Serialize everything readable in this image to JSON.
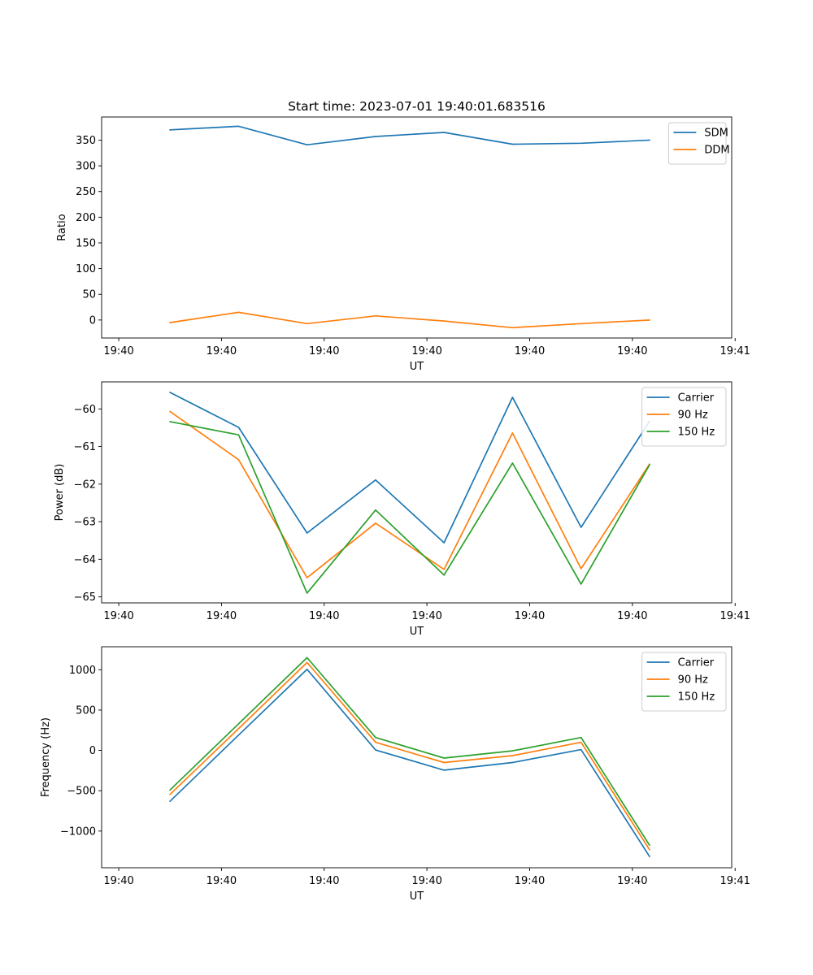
{
  "figure": {
    "title": "Start time: 2023-07-01 19:40:01.683516"
  },
  "chart_data": [
    {
      "type": "line",
      "title": "Start time: 2023-07-01 19:40:01.683516",
      "xlabel": "UT",
      "ylabel": "Ratio",
      "x_tick_labels": [
        "19:40",
        "19:40",
        "19:40",
        "19:40",
        "19:40",
        "19:40",
        "19:41"
      ],
      "y_ticks": [
        0,
        50,
        100,
        150,
        200,
        250,
        300,
        350
      ],
      "ylim": [
        -35,
        395
      ],
      "xlim": [
        -1,
        8.2
      ],
      "legend_position": "upper right",
      "series": [
        {
          "name": "SDM",
          "color": "#1f77b4",
          "x": [
            0,
            1,
            2,
            3,
            4,
            5,
            6,
            7
          ],
          "y": [
            370,
            377,
            341,
            357,
            365,
            342,
            344,
            350
          ]
        },
        {
          "name": "DDM",
          "color": "#ff7f0e",
          "x": [
            0,
            1,
            2,
            3,
            4,
            5,
            6,
            7
          ],
          "y": [
            -5,
            15,
            -7,
            8,
            -2,
            -15,
            -7,
            0
          ]
        }
      ]
    },
    {
      "type": "line",
      "title": "",
      "xlabel": "UT",
      "ylabel": "Power (dB)",
      "x_tick_labels": [
        "19:40",
        "19:40",
        "19:40",
        "19:40",
        "19:40",
        "19:40",
        "19:41"
      ],
      "y_ticks": [
        -65,
        -64,
        -63,
        -62,
        -61,
        -60
      ],
      "ylim": [
        -65.16,
        -59.28
      ],
      "xlim": [
        -1,
        8.2
      ],
      "legend_position": "upper right",
      "series": [
        {
          "name": "Carrier",
          "color": "#1f77b4",
          "x": [
            0,
            1,
            2,
            3,
            4,
            5,
            6,
            7
          ],
          "y": [
            -59.56,
            -60.49,
            -63.3,
            -61.89,
            -63.56,
            -59.69,
            -63.15,
            -60.33
          ]
        },
        {
          "name": "90 Hz",
          "color": "#ff7f0e",
          "x": [
            0,
            1,
            2,
            3,
            4,
            5,
            6,
            7
          ],
          "y": [
            -60.07,
            -61.35,
            -64.49,
            -63.04,
            -64.27,
            -60.64,
            -64.25,
            -61.47
          ]
        },
        {
          "name": "150 Hz",
          "color": "#2ca02c",
          "x": [
            0,
            1,
            2,
            3,
            4,
            5,
            6,
            7
          ],
          "y": [
            -60.34,
            -60.69,
            -64.9,
            -62.69,
            -64.42,
            -61.44,
            -64.66,
            -61.49
          ]
        }
      ]
    },
    {
      "type": "line",
      "title": "",
      "xlabel": "UT",
      "ylabel": "Frequency (Hz)",
      "x_tick_labels": [
        "19:40",
        "19:40",
        "19:40",
        "19:40",
        "19:40",
        "19:40",
        "19:41"
      ],
      "y_ticks": [
        -1000,
        -500,
        0,
        500,
        1000
      ],
      "ylim": [
        -1455,
        1285
      ],
      "xlim": [
        -1,
        8.2
      ],
      "legend_position": "upper right",
      "series": [
        {
          "name": "Carrier",
          "color": "#1f77b4",
          "x": [
            0,
            1,
            2,
            3,
            4,
            5,
            6,
            7
          ],
          "y": [
            -630,
            190,
            1005,
            5,
            -245,
            -150,
            10,
            -1315
          ]
        },
        {
          "name": "90 Hz",
          "color": "#ff7f0e",
          "x": [
            0,
            1,
            2,
            3,
            4,
            5,
            6,
            7
          ],
          "y": [
            -545,
            270,
            1090,
            100,
            -150,
            -65,
            100,
            -1230
          ]
        },
        {
          "name": "150 Hz",
          "color": "#2ca02c",
          "x": [
            0,
            1,
            2,
            3,
            4,
            5,
            6,
            7
          ],
          "y": [
            -490,
            330,
            1150,
            160,
            -95,
            -5,
            160,
            -1175
          ]
        }
      ]
    }
  ]
}
